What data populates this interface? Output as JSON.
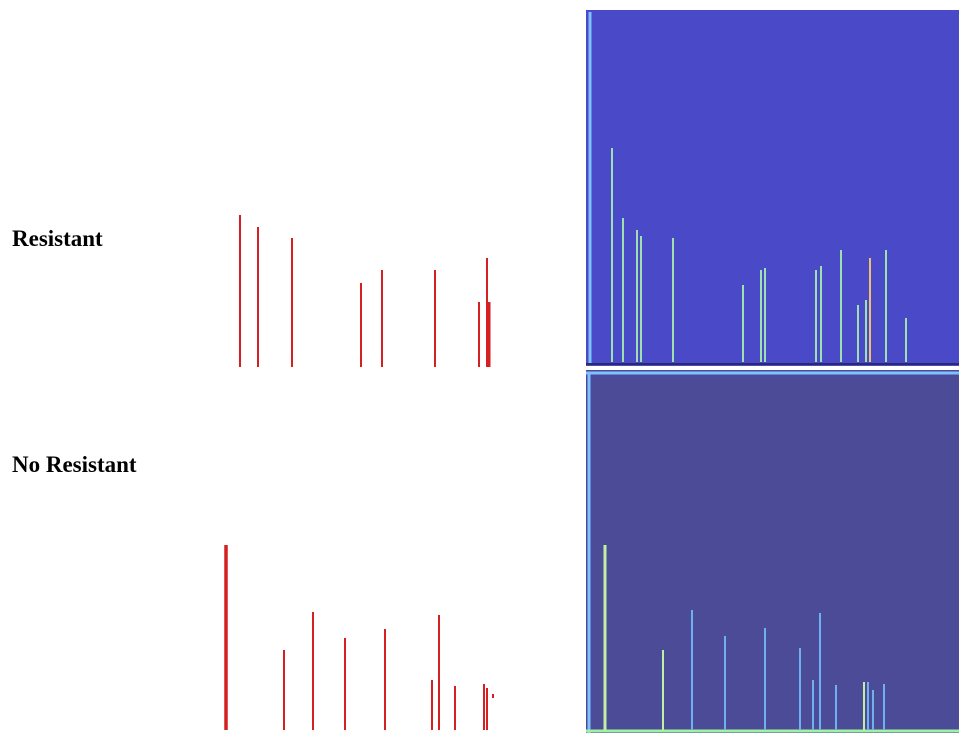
{
  "panels": [
    {
      "label": "Resistant"
    },
    {
      "label": "No Resistant"
    }
  ]
}
